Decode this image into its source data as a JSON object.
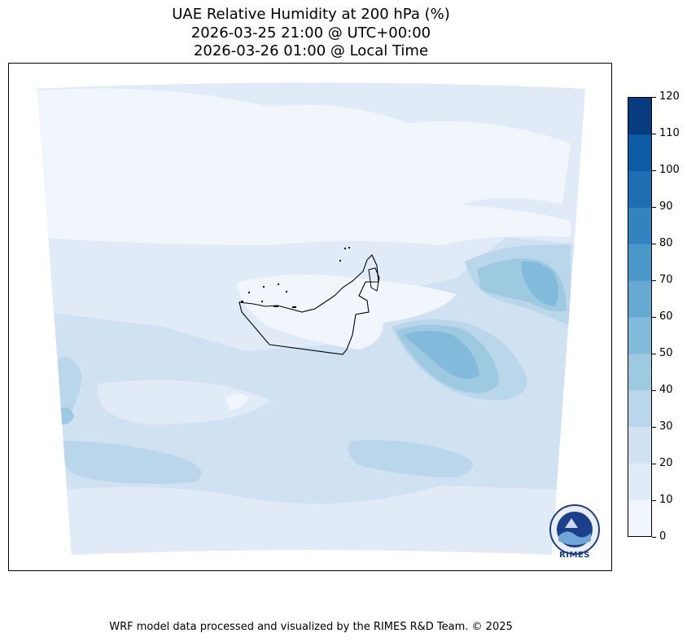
{
  "title": {
    "line1": "UAE Relative Humidity at 200 hPa (%)",
    "line2": "2026-03-25 21:00 @ UTC+00:00",
    "line3": "2026-03-26 01:00 @ Local Time"
  },
  "colorbar": {
    "levels": [
      "0",
      "10",
      "20",
      "30",
      "40",
      "50",
      "60",
      "70",
      "80",
      "90",
      "100",
      "110",
      "120"
    ],
    "colors": [
      "#f0f6fc",
      "#e0ebf7",
      "#d0e1f2",
      "#bad6eb",
      "#9ecae1",
      "#82badb",
      "#66aad4",
      "#4a98c9",
      "#3383be",
      "#1f6eb3",
      "#0c5ba4",
      "#083b80"
    ]
  },
  "logo": {
    "text": "RIMES"
  },
  "footer": "WRF model data processed and visualized by the RIMES R&D Team. © 2025"
}
